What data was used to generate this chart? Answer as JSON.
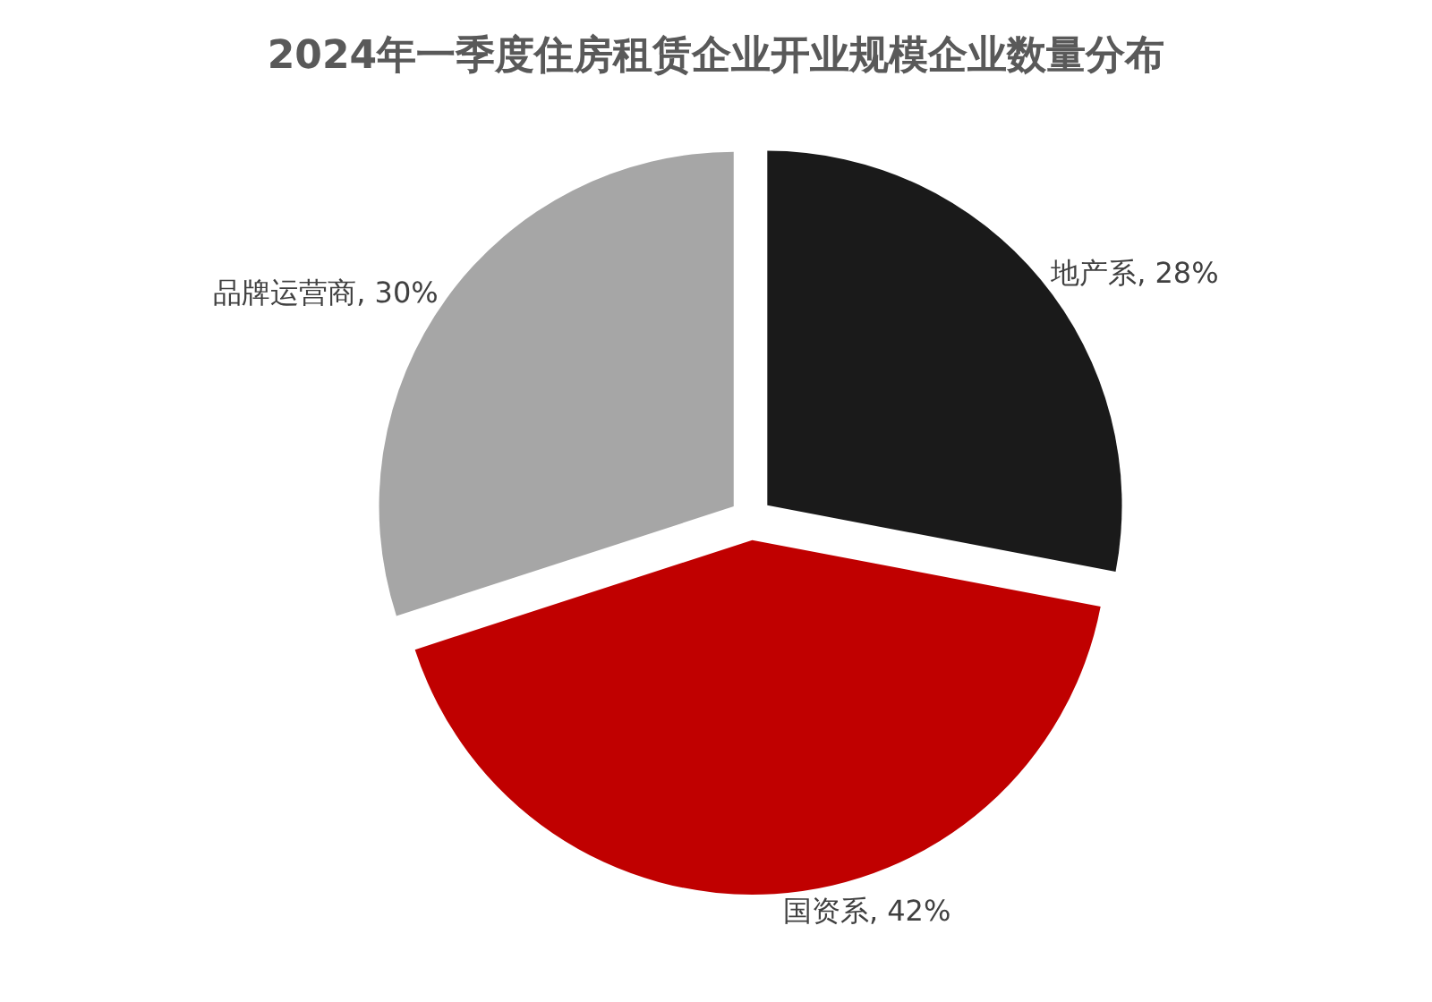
{
  "chart_data": {
    "type": "pie",
    "title": "2024年一季度住房租赁企业开业规模企业数量分布",
    "categories": [
      "地产系",
      "国资系",
      "品牌运营商"
    ],
    "values": [
      28,
      42,
      30
    ],
    "value_labels": [
      "28%",
      "42%",
      "30%"
    ],
    "colors": [
      "#1a1a1a",
      "#c00000",
      "#a6a6a6"
    ],
    "legend": false
  }
}
